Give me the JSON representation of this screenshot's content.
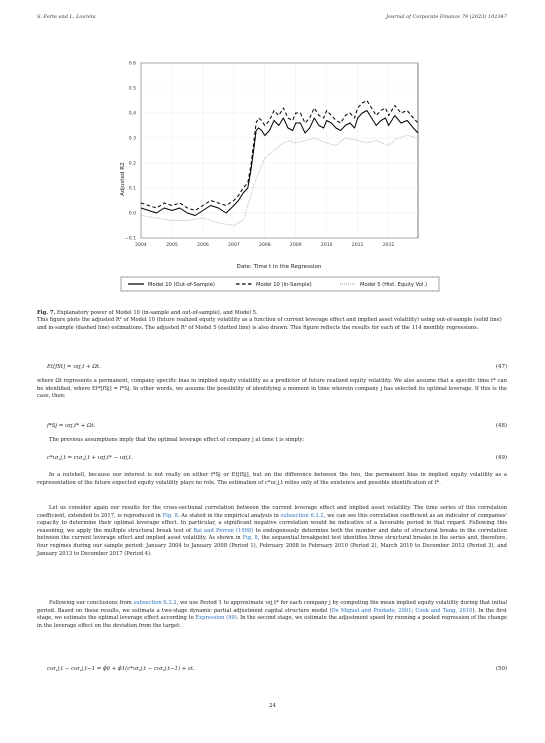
{
  "header": {
    "left": "S. Forte and L. Lovreta",
    "right": "Journal of Corporate Finance 79 (2023) 102347"
  },
  "chart_data": {
    "type": "line",
    "xlabel": "Date: Time t in the Regression",
    "ylabel": "Adjusted R2",
    "ylim": [
      -0.1,
      0.6
    ],
    "xlim": [
      2004.0,
      2012.95
    ],
    "yticks": [
      "0.6",
      "0.5",
      "0.4",
      "0.3",
      "0.2",
      "0.1",
      "0.0",
      "−0.1"
    ],
    "xticks": [
      "2004",
      "2005",
      "2006",
      "2007",
      "2008",
      "2009",
      "2010",
      "2011",
      "2012"
    ],
    "grid": true,
    "legend_position": "bottom",
    "series": [
      {
        "name": "Model 10 (Out-of-Sample)",
        "style": "solid",
        "color": "#000000",
        "x": [
          2004.0,
          2004.25,
          2004.5,
          2004.75,
          2005.0,
          2005.25,
          2005.5,
          2005.75,
          2006.0,
          2006.25,
          2006.5,
          2006.75,
          2007.0,
          2007.15,
          2007.3,
          2007.45,
          2007.55,
          2007.65,
          2007.72,
          2007.8,
          2007.9,
          2008.0,
          2008.15,
          2008.3,
          2008.45,
          2008.6,
          2008.75,
          2008.9,
          2009.0,
          2009.15,
          2009.3,
          2009.45,
          2009.6,
          2009.75,
          2009.9,
          2010.0,
          2010.15,
          2010.3,
          2010.45,
          2010.6,
          2010.75,
          2010.9,
          2011.0,
          2011.15,
          2011.3,
          2011.45,
          2011.6,
          2011.75,
          2011.9,
          2012.0,
          2012.2,
          2012.4,
          2012.6,
          2012.8,
          2012.95
        ],
        "values": [
          0.02,
          0.01,
          0.0,
          0.02,
          0.01,
          0.02,
          0.0,
          -0.01,
          0.01,
          0.03,
          0.02,
          0.0,
          0.03,
          0.05,
          0.08,
          0.1,
          0.17,
          0.26,
          0.33,
          0.34,
          0.33,
          0.31,
          0.33,
          0.37,
          0.35,
          0.38,
          0.34,
          0.33,
          0.36,
          0.36,
          0.32,
          0.34,
          0.38,
          0.35,
          0.34,
          0.37,
          0.36,
          0.34,
          0.33,
          0.35,
          0.36,
          0.34,
          0.38,
          0.4,
          0.41,
          0.38,
          0.35,
          0.37,
          0.38,
          0.35,
          0.39,
          0.36,
          0.37,
          0.34,
          0.32
        ]
      },
      {
        "name": "Model 10 (In-Sample)",
        "style": "dashed",
        "color": "#000000",
        "x": [
          2004.0,
          2004.25,
          2004.5,
          2004.75,
          2005.0,
          2005.25,
          2005.5,
          2005.75,
          2006.0,
          2006.25,
          2006.5,
          2006.75,
          2007.0,
          2007.15,
          2007.3,
          2007.45,
          2007.55,
          2007.65,
          2007.72,
          2007.8,
          2007.9,
          2008.0,
          2008.15,
          2008.3,
          2008.45,
          2008.6,
          2008.75,
          2008.9,
          2009.0,
          2009.15,
          2009.3,
          2009.45,
          2009.6,
          2009.75,
          2009.9,
          2010.0,
          2010.15,
          2010.3,
          2010.45,
          2010.6,
          2010.75,
          2010.9,
          2011.0,
          2011.15,
          2011.3,
          2011.45,
          2011.6,
          2011.75,
          2011.9,
          2012.0,
          2012.2,
          2012.4,
          2012.6,
          2012.8,
          2012.95
        ],
        "values": [
          0.04,
          0.03,
          0.02,
          0.04,
          0.03,
          0.04,
          0.02,
          0.01,
          0.03,
          0.05,
          0.04,
          0.03,
          0.05,
          0.07,
          0.1,
          0.12,
          0.19,
          0.29,
          0.36,
          0.38,
          0.37,
          0.35,
          0.37,
          0.41,
          0.39,
          0.42,
          0.38,
          0.37,
          0.4,
          0.4,
          0.36,
          0.38,
          0.42,
          0.39,
          0.38,
          0.41,
          0.39,
          0.37,
          0.36,
          0.39,
          0.4,
          0.38,
          0.42,
          0.44,
          0.45,
          0.42,
          0.39,
          0.41,
          0.42,
          0.39,
          0.43,
          0.4,
          0.41,
          0.38,
          0.36
        ]
      },
      {
        "name": "Model 5 (Hist. Equity Vol.)",
        "style": "dotted",
        "color": "#888888",
        "x": [
          2004.0,
          2004.5,
          2005.0,
          2005.5,
          2006.0,
          2006.5,
          2007.0,
          2007.3,
          2007.5,
          2007.7,
          2007.9,
          2008.0,
          2008.2,
          2008.4,
          2008.6,
          2008.8,
          2009.0,
          2009.3,
          2009.6,
          2010.0,
          2010.3,
          2010.6,
          2011.0,
          2011.3,
          2011.6,
          2012.0,
          2012.3,
          2012.6,
          2012.95
        ],
        "values": [
          -0.01,
          -0.02,
          -0.03,
          -0.03,
          -0.02,
          -0.04,
          -0.05,
          -0.03,
          0.05,
          0.13,
          0.19,
          0.22,
          0.24,
          0.26,
          0.28,
          0.29,
          0.28,
          0.29,
          0.3,
          0.28,
          0.27,
          0.3,
          0.29,
          0.28,
          0.29,
          0.27,
          0.3,
          0.31,
          0.3
        ]
      }
    ]
  },
  "figure_caption": {
    "label": "Fig. 7.",
    "title": "Explanatory power of Model 10 (in-sample and out-of-sample), and Model 5.",
    "text": "This figure plots the adjusted R² of Model 10 (future realized equity volatility as a function of current leverage effect and implied asset volatility) using out-of-sample (solid line) and in-sample (dashed line) estimations. The adjusted R² of Model 5 (dotted line) is also drawn. This figure reflects the results for each of the 114 monthly regressions."
  },
  "equations": {
    "eq47": {
      "lhs": "Et[fSt] = ισj,t + Ωt.",
      "num": "(47)"
    },
    "eq48": {
      "lhs": "f*Sj = ισj,t* + Ωt.",
      "num": "(48)"
    },
    "eq49": {
      "lhs": "c*ισ,j,t = cισ,j,t + ισj,t* − ισj,t.",
      "num": "(49)"
    },
    "eq50": {
      "lhs": "cισ,j,t − cισ,j,t−1 = ϕ0 + ϕ1(c*ισ,j,t − cισ,j,t−1) + εt.",
      "num": "(50)"
    }
  },
  "paragraphs": {
    "p1": "where Ωt represents a permanent, company specific bias in implied equity volatility as a predictor of future realized equity volatility. We also assume that a specific time t* can be identified, where Et*[fSj] = f*Sj. In other words, we assume the possibility of identifying a moment in time wherein company j has selected its optimal leverage. If this is the case, then:",
    "p2": "The previous assumptions imply that the optimal leverage effect of company j at time t is simply:",
    "p3": "In a nutshell, because our interest is not really on either f*Sj or Et[fSj], but on the difference between the two, the permanent bias in implied equity volatility as a representation of the future expected equity volatility plays no role. The estimation of c*ισ,j,t relies only of the existence and possible identification of t*.",
    "p4a": "Let us consider again our results for the cross-sectional correlation between the current leverage effect and implied asset volatility. The time series of this correlation coefficient, extended to 2017, is reproduced in ",
    "p4_link1": "Fig. 8",
    "p4b": ". As stated in the empirical analysis in ",
    "p4_link2": "subsection 6.3.2",
    "p4c": ", we can see this correlation coefficient as an indicator of companies' capacity to determine their optimal leverage effect. In particular, a significant negative correlation would be indicative of a favorable period in that regard. Following this reasoning, we apply the multiple structural break test of ",
    "p4_link3": "Bai and Perron (1998)",
    "p4d": " to endogenously determine both the number and date of structural breaks in the correlation between the current leverage effect and implied asset volatility. As shown in ",
    "p4_link4": "Fig. 8",
    "p4e": ", the sequential breakpoint test identifies three structural breaks in the series and, therefore, four regimes during our sample period: January 2004 to January 2008 (Period 1), February 2008 to February 2010 (Period 2), March 2010 to December 2012 (Period 3), and January 2013 to December 2017 (Period 4).",
    "p5a": "Following our conclusions from ",
    "p5_link1": "subsection 6.3.2",
    "p5b": ", we use Period 1 to approximate ισj,t* for each company j by computing the mean implied equity volatility during that initial period. Based on these results, we estimate a two-stage dynamic partial adjustment capital structure model (",
    "p5_link2": "De Miguel and Pindado, 2001",
    "p5c": "; ",
    "p5_link3": "Cook and Tang, 2010",
    "p5d": "). In the first stage, we estimate the optimal leverage effect according to ",
    "p5_link4": "Expression (49)",
    "p5e": ". In the second stage, we estimate the adjustment speed by running a pooled regression of the change in the leverage effect on the deviation from the target:"
  },
  "page_number": "24"
}
